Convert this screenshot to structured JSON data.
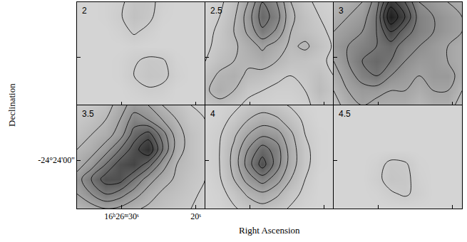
{
  "xlabel": "Right Ascension",
  "ylabel": "Declination",
  "chart_data": [
    {
      "type": "contour",
      "title": "2",
      "tick_labels": false,
      "grid": false,
      "xlim": [
        36,
        18.7
      ],
      "ylim": [
        -24.4247,
        -24.3719
      ],
      "xticks": [
        {
          "value": 30,
          "label": "16ʰ26ᵐ30ˢ"
        },
        {
          "value": 20,
          "label": "20ˢ"
        }
      ],
      "yticks": [
        {
          "value": -24.4,
          "label": "-24°24'00''"
        }
      ],
      "zlim": [
        0,
        10
      ],
      "contour_levels": [
        1,
        2,
        3,
        4,
        5,
        6,
        7,
        8,
        9
      ],
      "x": [
        36,
        34.08,
        32.16,
        30.23,
        28.31,
        26.39,
        24.47,
        22.54,
        20.62,
        18.7
      ],
      "y": [
        -24.4247,
        -24.4172,
        -24.4096,
        -24.4021,
        -24.3945,
        -24.387,
        -24.3794,
        -24.3719
      ],
      "cells": [
        [
          0.5,
          0.5,
          0.5,
          0.5,
          0.5,
          0.5,
          0.5,
          0.5,
          0.5,
          0.5
        ],
        [
          0.5,
          0.5,
          0.5,
          0.5,
          0.7,
          0.9,
          0.8,
          0.5,
          0.5,
          0.5
        ],
        [
          0.5,
          0.5,
          0.5,
          0.6,
          1.0,
          1.3,
          1.2,
          0.7,
          0.5,
          0.5
        ],
        [
          0.5,
          0.5,
          0.5,
          0.6,
          0.9,
          1.2,
          1.1,
          0.6,
          0.5,
          0.5
        ],
        [
          0.5,
          0.5,
          0.5,
          0.5,
          0.6,
          0.5,
          0.5,
          0.5,
          0.5,
          0.5
        ],
        [
          0.5,
          0.5,
          0.5,
          0.7,
          1.1,
          0.8,
          0.5,
          0.5,
          0.5,
          0.5
        ],
        [
          0.5,
          0.5,
          0.6,
          0.9,
          1.5,
          1.2,
          0.6,
          0.5,
          0.5,
          0.5
        ],
        [
          0.5,
          0.5,
          0.6,
          0.8,
          1.4,
          1.3,
          0.7,
          0.5,
          0.5,
          0.5
        ]
      ]
    },
    {
      "type": "contour",
      "title": "2.5",
      "tick_labels": false,
      "grid": false,
      "xlim": [
        36,
        18.7
      ],
      "ylim": [
        -24.4247,
        -24.3719
      ],
      "xticks": [
        {
          "value": 30,
          "label": "16ʰ26ᵐ30ˢ"
        },
        {
          "value": 20,
          "label": "20ˢ"
        }
      ],
      "yticks": [
        {
          "value": -24.4,
          "label": "-24°24'00''"
        }
      ],
      "zlim": [
        0,
        10
      ],
      "contour_levels": [
        1,
        2,
        3,
        4,
        5,
        6,
        7,
        8,
        9
      ],
      "x": [
        36,
        34.08,
        32.16,
        30.23,
        28.31,
        26.39,
        24.47,
        22.54,
        20.62,
        18.7
      ],
      "y": [
        -24.4247,
        -24.4172,
        -24.4096,
        -24.4021,
        -24.3945,
        -24.387,
        -24.3794,
        -24.3719
      ],
      "cells": [
        [
          1.2,
          1.6,
          1.2,
          0.8,
          0.7,
          0.6,
          0.6,
          0.8,
          1.3,
          1.0
        ],
        [
          1.8,
          2.5,
          2.0,
          1.2,
          1.0,
          0.8,
          0.8,
          1.0,
          1.8,
          1.2
        ],
        [
          1.5,
          2.2,
          2.4,
          1.8,
          1.6,
          1.2,
          1.0,
          1.2,
          1.6,
          1.0
        ],
        [
          1.0,
          1.6,
          2.0,
          2.2,
          2.5,
          2.0,
          1.5,
          1.4,
          1.2,
          0.8
        ],
        [
          0.8,
          1.3,
          1.8,
          2.5,
          3.2,
          2.5,
          1.8,
          2.2,
          1.5,
          0.9
        ],
        [
          0.7,
          1.2,
          2.0,
          3.2,
          4.8,
          3.8,
          2.0,
          1.6,
          1.2,
          0.8
        ],
        [
          0.6,
          1.0,
          1.8,
          3.5,
          5.5,
          4.5,
          2.2,
          1.5,
          1.0,
          0.7
        ],
        [
          0.5,
          0.8,
          1.5,
          3.0,
          5.0,
          4.0,
          2.0,
          1.2,
          0.8,
          0.6
        ]
      ]
    },
    {
      "type": "contour",
      "title": "3",
      "tick_labels": false,
      "grid": false,
      "xlim": [
        36,
        18.7
      ],
      "ylim": [
        -24.4247,
        -24.3719
      ],
      "xticks": [
        {
          "value": 30,
          "label": "16ʰ26ᵐ30ˢ"
        },
        {
          "value": 20,
          "label": "20ˢ"
        }
      ],
      "yticks": [
        {
          "value": -24.4,
          "label": "-24°24'00''"
        }
      ],
      "zlim": [
        0,
        10
      ],
      "contour_levels": [
        1,
        2,
        3,
        4,
        5,
        6,
        7,
        8,
        9
      ],
      "x": [
        36,
        34.08,
        32.16,
        30.23,
        28.31,
        26.39,
        24.47,
        22.54,
        20.62,
        18.7
      ],
      "y": [
        -24.4247,
        -24.4172,
        -24.4096,
        -24.4021,
        -24.3945,
        -24.387,
        -24.3794,
        -24.3719
      ],
      "cells": [
        [
          1.5,
          2.5,
          3.0,
          2.5,
          2.5,
          2.5,
          2.0,
          2.5,
          2.5,
          1.5
        ],
        [
          2.0,
          3.0,
          3.5,
          3.5,
          3.0,
          3.0,
          2.5,
          3.0,
          3.0,
          2.0
        ],
        [
          2.5,
          3.5,
          4.5,
          5.0,
          4.0,
          3.5,
          3.0,
          3.5,
          3.5,
          2.5
        ],
        [
          3.0,
          4.0,
          5.0,
          5.5,
          5.0,
          4.0,
          3.5,
          3.5,
          3.0,
          2.5
        ],
        [
          3.5,
          4.0,
          4.5,
          5.0,
          5.5,
          4.5,
          4.0,
          3.5,
          3.0,
          2.5
        ],
        [
          3.0,
          3.5,
          4.0,
          5.0,
          7.0,
          5.5,
          4.5,
          4.0,
          3.5,
          3.0
        ],
        [
          2.5,
          3.0,
          3.5,
          5.0,
          9.0,
          7.0,
          4.5,
          4.0,
          3.5,
          3.0
        ],
        [
          2.0,
          2.5,
          3.0,
          4.5,
          7.5,
          6.0,
          4.0,
          3.5,
          3.0,
          2.5
        ]
      ]
    },
    {
      "type": "contour",
      "title": "3.5",
      "grid": false,
      "xlim": [
        36,
        18.7
      ],
      "ylim": [
        -24.4247,
        -24.3719
      ],
      "xticks": [
        {
          "value": 30,
          "label": "16ʰ26ᵐ30ˢ"
        },
        {
          "value": 20,
          "label": "20ˢ"
        }
      ],
      "yticks": [
        {
          "value": -24.4,
          "label": "-24°24'00''"
        }
      ],
      "zlim": [
        0,
        10
      ],
      "contour_levels": [
        1,
        2,
        3,
        4,
        5,
        6,
        7,
        8,
        9
      ],
      "x": [
        36,
        34.08,
        32.16,
        30.23,
        28.31,
        26.39,
        24.47,
        22.54,
        20.62,
        18.7
      ],
      "y": [
        -24.4247,
        -24.4172,
        -24.4096,
        -24.4021,
        -24.3945,
        -24.387,
        -24.3794,
        -24.3719
      ],
      "cells": [
        [
          2.0,
          2.5,
          3.0,
          2.8,
          2.2,
          1.8,
          1.5,
          1.2,
          1.0,
          0.7
        ],
        [
          3.0,
          4.0,
          5.0,
          4.5,
          3.5,
          2.5,
          1.8,
          1.5,
          1.2,
          0.8
        ],
        [
          3.5,
          5.0,
          6.5,
          6.5,
          5.0,
          3.5,
          2.5,
          1.8,
          1.3,
          1.0
        ],
        [
          2.5,
          3.5,
          5.0,
          6.5,
          7.0,
          5.5,
          3.5,
          2.0,
          1.5,
          1.0
        ],
        [
          2.0,
          2.5,
          3.5,
          5.0,
          6.5,
          8.0,
          5.0,
          2.5,
          1.5,
          1.0
        ],
        [
          1.5,
          2.0,
          2.5,
          3.5,
          5.5,
          6.5,
          4.5,
          2.5,
          1.5,
          1.0
        ],
        [
          1.2,
          1.5,
          2.0,
          3.0,
          4.5,
          4.0,
          3.0,
          2.0,
          1.2,
          1.0
        ],
        [
          1.0,
          1.2,
          1.5,
          2.5,
          3.5,
          3.0,
          2.0,
          1.5,
          1.0,
          0.8
        ]
      ]
    },
    {
      "type": "contour",
      "title": "4",
      "tick_labels": false,
      "grid": false,
      "xlim": [
        36,
        18.7
      ],
      "ylim": [
        -24.4247,
        -24.3719
      ],
      "xticks": [
        {
          "value": 30,
          "label": "16ʰ26ᵐ30ˢ"
        },
        {
          "value": 20,
          "label": "20ˢ"
        }
      ],
      "yticks": [
        {
          "value": -24.4,
          "label": "-24°24'00''"
        }
      ],
      "zlim": [
        0,
        10
      ],
      "contour_levels": [
        1,
        2,
        3,
        4,
        5,
        6,
        7,
        8,
        9
      ],
      "x": [
        36,
        34.08,
        32.16,
        30.23,
        28.31,
        26.39,
        24.47,
        22.54,
        20.62,
        18.7
      ],
      "y": [
        -24.4247,
        -24.4172,
        -24.4096,
        -24.4021,
        -24.3945,
        -24.387,
        -24.3794,
        -24.3719
      ],
      "cells": [
        [
          0.5,
          0.6,
          0.9,
          1.3,
          1.6,
          1.3,
          0.9,
          0.6,
          0.5,
          0.5
        ],
        [
          0.5,
          0.7,
          1.3,
          2.2,
          2.8,
          2.2,
          1.3,
          0.8,
          0.5,
          0.5
        ],
        [
          0.5,
          0.9,
          2.0,
          3.5,
          4.5,
          3.5,
          2.0,
          1.0,
          0.5,
          0.5
        ],
        [
          0.6,
          1.0,
          2.3,
          4.5,
          6.5,
          4.5,
          2.5,
          1.2,
          0.6,
          0.5
        ],
        [
          0.6,
          1.0,
          2.2,
          4.0,
          5.5,
          4.5,
          2.5,
          1.2,
          0.6,
          0.5
        ],
        [
          0.6,
          0.9,
          1.8,
          3.0,
          3.8,
          3.5,
          2.2,
          1.0,
          0.6,
          0.5
        ],
        [
          0.5,
          0.7,
          1.2,
          2.0,
          2.5,
          2.2,
          1.5,
          0.8,
          0.5,
          0.5
        ],
        [
          0.5,
          0.6,
          0.8,
          1.2,
          1.5,
          1.3,
          0.9,
          0.6,
          0.5,
          0.5
        ]
      ]
    },
    {
      "type": "contour",
      "title": "4.5",
      "tick_labels": false,
      "grid": false,
      "xlim": [
        36,
        18.7
      ],
      "ylim": [
        -24.4247,
        -24.3719
      ],
      "xticks": [
        {
          "value": 30,
          "label": "16ʰ26ᵐ30ˢ"
        },
        {
          "value": 20,
          "label": "20ˢ"
        }
      ],
      "yticks": [
        {
          "value": -24.4,
          "label": "-24°24'00''"
        }
      ],
      "zlim": [
        0,
        10
      ],
      "contour_levels": [
        1,
        2,
        3,
        4,
        5,
        6,
        7,
        8,
        9
      ],
      "x": [
        36,
        34.08,
        32.16,
        30.23,
        28.31,
        26.39,
        24.47,
        22.54,
        20.62,
        18.7
      ],
      "y": [
        -24.4247,
        -24.4172,
        -24.4096,
        -24.4021,
        -24.3945,
        -24.387,
        -24.3794,
        -24.3719
      ],
      "cells": [
        [
          0.5,
          0.5,
          0.5,
          0.5,
          0.5,
          0.5,
          0.5,
          0.5,
          0.5,
          0.5
        ],
        [
          0.5,
          0.5,
          0.5,
          0.6,
          0.9,
          1.1,
          0.8,
          0.5,
          0.5,
          0.5
        ],
        [
          0.5,
          0.5,
          0.5,
          0.8,
          1.3,
          1.2,
          0.7,
          0.5,
          0.5,
          0.5
        ],
        [
          0.5,
          0.5,
          0.5,
          0.7,
          1.2,
          1.1,
          0.6,
          0.5,
          0.5,
          0.5
        ],
        [
          0.5,
          0.5,
          0.5,
          0.5,
          0.5,
          0.5,
          0.5,
          0.5,
          0.5,
          0.5
        ],
        [
          0.5,
          0.5,
          0.5,
          0.5,
          0.5,
          0.5,
          0.5,
          0.5,
          0.5,
          0.5
        ],
        [
          0.5,
          0.5,
          0.5,
          0.5,
          0.5,
          0.5,
          0.5,
          0.5,
          0.5,
          0.5
        ],
        [
          0.5,
          0.5,
          0.5,
          0.5,
          0.5,
          0.5,
          0.5,
          0.5,
          0.5,
          0.5
        ]
      ]
    }
  ]
}
